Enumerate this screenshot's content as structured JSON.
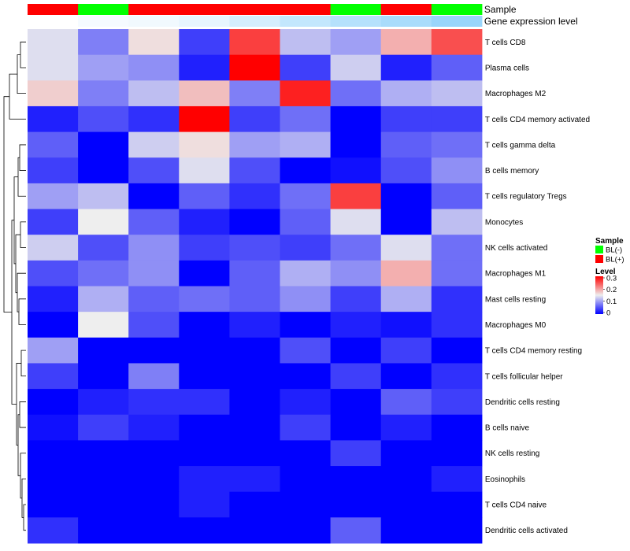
{
  "chart_data": {
    "type": "heatmap",
    "annotation_labels": [
      "Sample",
      "Gene expression level"
    ],
    "sample_groups": [
      "BL(+)",
      "BL(-)",
      "BL(+)",
      "BL(+)",
      "BL(+)",
      "BL(+)",
      "BL(-)",
      "BL(+)",
      "BL(-)"
    ],
    "gene_expression_level": [
      0.0,
      0.08,
      0.12,
      0.2,
      0.35,
      0.5,
      0.62,
      0.72,
      0.85
    ],
    "rows": [
      "T cells CD8",
      "Plasma cells",
      "Macrophages M2",
      "T cells CD4 memory activated",
      "T cells gamma delta",
      "B cells memory",
      "T cells regulatory  Tregs",
      "Monocytes",
      "NK cells activated",
      "Macrophages M1",
      "Mast cells resting",
      "Macrophages M0",
      "T cells CD4 memory resting",
      "T cells follicular helper",
      "Dendritic cells resting",
      "B cells naive",
      "NK cells resting",
      "Eosinophils",
      "T cells CD4 naive",
      "Dendritic cells activated"
    ],
    "values": [
      [
        0.14,
        0.08,
        0.16,
        0.04,
        0.26,
        0.12,
        0.1,
        0.19,
        0.25
      ],
      [
        0.14,
        0.1,
        0.09,
        0.02,
        0.3,
        0.04,
        0.13,
        0.02,
        0.06
      ],
      [
        0.17,
        0.08,
        0.12,
        0.18,
        0.08,
        0.28,
        0.07,
        0.11,
        0.12
      ],
      [
        0.02,
        0.05,
        0.03,
        0.3,
        0.04,
        0.07,
        0.0,
        0.04,
        0.04
      ],
      [
        0.06,
        0.0,
        0.13,
        0.16,
        0.1,
        0.11,
        0.0,
        0.06,
        0.07
      ],
      [
        0.04,
        0.0,
        0.05,
        0.14,
        0.05,
        0.0,
        0.01,
        0.05,
        0.09
      ],
      [
        0.1,
        0.12,
        0.0,
        0.06,
        0.03,
        0.07,
        0.26,
        0.0,
        0.06
      ],
      [
        0.04,
        0.15,
        0.06,
        0.02,
        0.0,
        0.06,
        0.14,
        0.0,
        0.12
      ],
      [
        0.13,
        0.05,
        0.09,
        0.04,
        0.05,
        0.04,
        0.07,
        0.14,
        0.07
      ],
      [
        0.05,
        0.07,
        0.09,
        0.0,
        0.06,
        0.11,
        0.09,
        0.19,
        0.07
      ],
      [
        0.02,
        0.11,
        0.06,
        0.07,
        0.06,
        0.09,
        0.04,
        0.11,
        0.03
      ],
      [
        0.0,
        0.15,
        0.05,
        0.0,
        0.02,
        0.0,
        0.02,
        0.01,
        0.03
      ],
      [
        0.1,
        0.0,
        0.0,
        0.0,
        0.0,
        0.05,
        0.0,
        0.04,
        0.0
      ],
      [
        0.04,
        0.0,
        0.08,
        0.0,
        0.0,
        0.0,
        0.04,
        0.0,
        0.03
      ],
      [
        0.0,
        0.02,
        0.03,
        0.03,
        0.0,
        0.02,
        0.0,
        0.06,
        0.04
      ],
      [
        0.01,
        0.04,
        0.02,
        0.0,
        0.0,
        0.04,
        0.0,
        0.02,
        0.0
      ],
      [
        0.0,
        0.0,
        0.0,
        0.0,
        0.0,
        0.0,
        0.04,
        0.0,
        0.0
      ],
      [
        0.0,
        0.0,
        0.0,
        0.02,
        0.02,
        0.0,
        0.0,
        0.0,
        0.02
      ],
      [
        0.0,
        0.0,
        0.0,
        0.02,
        0.0,
        0.0,
        0.0,
        0.0,
        0.0
      ],
      [
        0.03,
        0.0,
        0.0,
        0.0,
        0.0,
        0.0,
        0.06,
        0.0,
        0.0
      ]
    ],
    "color_scale": {
      "min": 0.0,
      "mid": 0.15,
      "max": 0.3,
      "low_color": "#0000ff",
      "mid_color": "#eeeeee",
      "high_color": "#ff0000"
    },
    "row_dendrogram": true,
    "legend": {
      "placement": "right",
      "sample_title": "Sample",
      "sample_entries": [
        {
          "label": "BL(-)",
          "color": "#00ff00"
        },
        {
          "label": "BL(+)",
          "color": "#ff0000"
        }
      ],
      "level_title": "Level",
      "level_ticks": [
        0.3,
        0.2,
        0.1,
        0
      ]
    },
    "gene_expression_colors": {
      "low": "#ffffff",
      "high": "#87cefa"
    }
  }
}
